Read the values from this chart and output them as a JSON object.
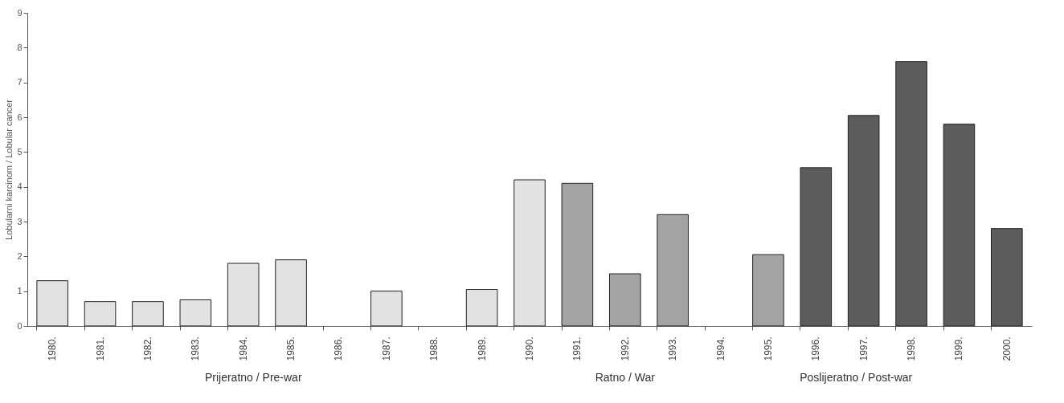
{
  "chart_data": {
    "type": "bar",
    "ylabel": "Lobularni karcinom / Lobular cancer",
    "categories": [
      "1980.",
      "1981.",
      "1982.",
      "1983.",
      "1984.",
      "1985.",
      "1986.",
      "1987.",
      "1988.",
      "1989.",
      "1990.",
      "1991.",
      "1992.",
      "1993.",
      "1994.",
      "1995.",
      "1996.",
      "1997.",
      "1998.",
      "1999.",
      "2000."
    ],
    "values": [
      1.3,
      0.7,
      0.7,
      0.75,
      1.8,
      1.9,
      0,
      1.0,
      0,
      1.05,
      4.2,
      4.1,
      1.5,
      3.2,
      0,
      2.05,
      4.55,
      6.05,
      7.6,
      5.8,
      2.8
    ],
    "colors": [
      "#e2e2e2",
      "#e2e2e2",
      "#e2e2e2",
      "#e2e2e2",
      "#e2e2e2",
      "#e2e2e2",
      "#e2e2e2",
      "#e2e2e2",
      "#e2e2e2",
      "#e2e2e2",
      "#e2e2e2",
      "#a3a3a3",
      "#a3a3a3",
      "#a3a3a3",
      "#a3a3a3",
      "#a3a3a3",
      "#5c5c5c",
      "#5c5c5c",
      "#5c5c5c",
      "#5c5c5c",
      "#5c5c5c"
    ],
    "ylim": [
      0,
      9
    ],
    "yticks": [
      0,
      1,
      2,
      3,
      4,
      5,
      6,
      7,
      8,
      9
    ],
    "grid": false,
    "annotations": [
      "Prijeratno / Pre-war",
      "Ratno / War",
      "Poslijeratno / Post-war"
    ]
  }
}
